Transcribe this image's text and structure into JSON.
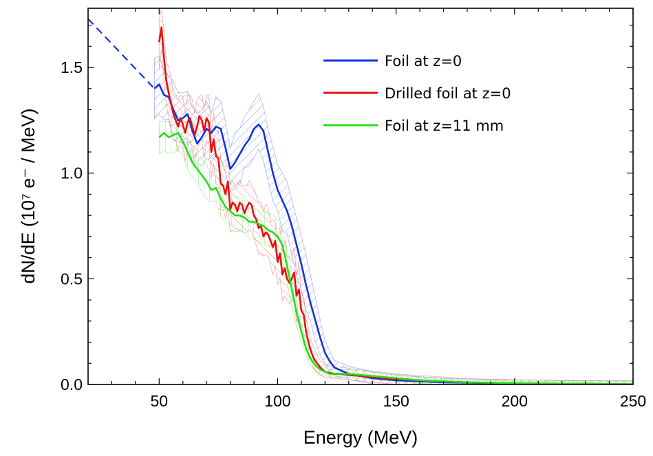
{
  "chart_data": {
    "type": "line",
    "xlabel": "Energy (MeV)",
    "ylabel": "dN/dE (10⁷ e⁻ / MeV)",
    "xlim": [
      20,
      250
    ],
    "ylim": [
      0,
      1.78
    ],
    "xticks": [
      "50",
      "100",
      "150",
      "200",
      "250"
    ],
    "yticks": [
      "0.0",
      "0.5",
      "1.0",
      "1.5"
    ],
    "legend_position": "top-right",
    "grid": false,
    "extrapolation": {
      "color": "#1133dd",
      "x": [
        20,
        48
      ],
      "y": [
        1.73,
        1.4
      ]
    },
    "series": [
      {
        "name": "Foil at z=0",
        "color": "#1133dd",
        "band_width": 0.12,
        "x": [
          48,
          50,
          52,
          54,
          56,
          58,
          60,
          62,
          64,
          66,
          68,
          70,
          72,
          74,
          76,
          78,
          80,
          82,
          84,
          86,
          88,
          90,
          92,
          94,
          96,
          98,
          100,
          102,
          104,
          106,
          108,
          110,
          112,
          114,
          116,
          118,
          120,
          122,
          124,
          126,
          128,
          130,
          135,
          140,
          145,
          150,
          160,
          170,
          180,
          190,
          200,
          210,
          220,
          230,
          240,
          250
        ],
        "y": [
          1.4,
          1.42,
          1.37,
          1.36,
          1.3,
          1.25,
          1.26,
          1.28,
          1.2,
          1.14,
          1.17,
          1.21,
          1.19,
          1.22,
          1.21,
          1.12,
          1.02,
          1.05,
          1.09,
          1.13,
          1.16,
          1.21,
          1.23,
          1.2,
          1.1,
          1.0,
          0.92,
          0.87,
          0.82,
          0.75,
          0.66,
          0.57,
          0.47,
          0.38,
          0.3,
          0.22,
          0.15,
          0.11,
          0.08,
          0.07,
          0.06,
          0.05,
          0.04,
          0.03,
          0.025,
          0.02,
          0.015,
          0.01,
          0.008,
          0.006,
          0.005,
          0.004,
          0.003,
          0.003,
          0.002,
          0.002
        ]
      },
      {
        "name": "Drilled foil at z=0",
        "color": "#e8100c",
        "band_width": 0.11,
        "x": [
          50,
          51,
          52,
          53,
          54,
          55,
          56,
          57,
          58,
          59,
          60,
          61,
          62,
          63,
          64,
          65,
          66,
          67,
          68,
          69,
          70,
          71,
          72,
          73,
          74,
          75,
          76,
          77,
          78,
          79,
          80,
          81,
          82,
          83,
          84,
          85,
          86,
          87,
          88,
          89,
          90,
          91,
          92,
          93,
          94,
          95,
          96,
          97,
          98,
          99,
          100,
          101,
          102,
          103,
          104,
          105,
          106,
          107,
          108,
          109,
          110,
          111,
          112,
          113,
          114,
          115,
          116,
          118,
          120,
          122,
          124,
          126,
          128,
          130,
          135,
          140,
          145,
          150,
          160,
          170,
          180,
          190,
          200,
          210,
          220,
          230,
          240,
          250
        ],
        "y": [
          1.62,
          1.69,
          1.55,
          1.44,
          1.38,
          1.33,
          1.28,
          1.25,
          1.22,
          1.26,
          1.23,
          1.19,
          1.24,
          1.26,
          1.22,
          1.18,
          1.22,
          1.27,
          1.25,
          1.2,
          1.26,
          1.24,
          1.1,
          1.16,
          1.08,
          1.07,
          0.95,
          0.94,
          0.9,
          0.96,
          0.83,
          0.86,
          0.85,
          0.82,
          0.86,
          0.85,
          0.81,
          0.84,
          0.86,
          0.85,
          0.8,
          0.78,
          0.74,
          0.75,
          0.7,
          0.72,
          0.71,
          0.68,
          0.65,
          0.68,
          0.58,
          0.62,
          0.52,
          0.55,
          0.5,
          0.48,
          0.5,
          0.53,
          0.42,
          0.45,
          0.35,
          0.33,
          0.25,
          0.2,
          0.16,
          0.13,
          0.11,
          0.08,
          0.06,
          0.055,
          0.05,
          0.05,
          0.048,
          0.045,
          0.04,
          0.035,
          0.03,
          0.025,
          0.02,
          0.015,
          0.01,
          0.008,
          0.006,
          0.005,
          0.004,
          0.003,
          0.002,
          0.002
        ]
      },
      {
        "name": "Foil at z=11 mm",
        "color": "#22e010",
        "band_width": 0.07,
        "x": [
          50,
          52,
          54,
          56,
          58,
          60,
          62,
          64,
          66,
          68,
          70,
          72,
          74,
          76,
          78,
          80,
          82,
          84,
          86,
          88,
          90,
          92,
          94,
          96,
          98,
          100,
          102,
          104,
          106,
          108,
          110,
          112,
          114,
          116,
          118,
          120,
          122,
          124,
          126,
          128,
          130,
          135,
          140,
          150,
          160,
          170,
          180,
          190,
          200,
          210,
          220,
          230,
          240,
          250
        ],
        "y": [
          1.17,
          1.19,
          1.17,
          1.18,
          1.19,
          1.15,
          1.1,
          1.05,
          1.02,
          0.99,
          0.96,
          0.92,
          0.93,
          0.88,
          0.84,
          0.82,
          0.8,
          0.8,
          0.79,
          0.77,
          0.77,
          0.76,
          0.75,
          0.73,
          0.72,
          0.7,
          0.66,
          0.56,
          0.45,
          0.34,
          0.25,
          0.17,
          0.12,
          0.09,
          0.07,
          0.06,
          0.05,
          0.05,
          0.05,
          0.05,
          0.05,
          0.045,
          0.04,
          0.03,
          0.02,
          0.015,
          0.01,
          0.008,
          0.006,
          0.005,
          0.004,
          0.003,
          0.002,
          0.002
        ]
      }
    ]
  }
}
